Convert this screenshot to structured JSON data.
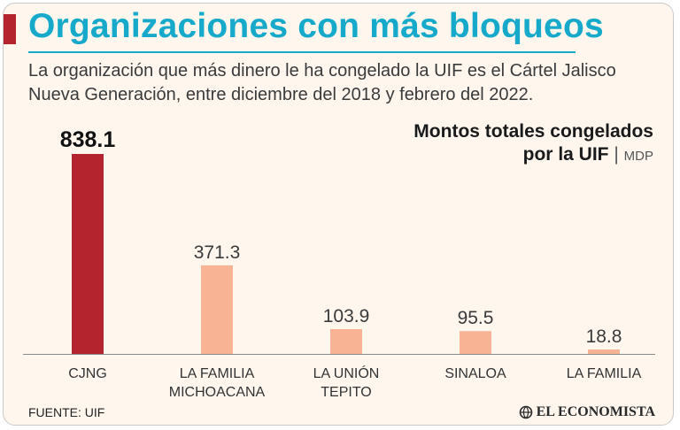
{
  "header": {
    "title": "Organizaciones con más bloqueos",
    "subtitle": "La organización que más dinero le ha congelado la UIF es el Cártel Jalisco Nueva Generación, entre diciembre del 2018 y febrero del 2022."
  },
  "measure": {
    "line1": "Montos totales congelados",
    "line2": "por la UIF",
    "separator": "|",
    "unit": "MDP"
  },
  "footer": {
    "source": "FUENTE: UIF",
    "logo_text": "EL ECONOMISTA"
  },
  "colors": {
    "highlight": "#b3242e",
    "bar": "#f7b394",
    "title": "#16a9c9"
  },
  "chart_data": {
    "type": "bar",
    "title": "Montos totales congelados por la UIF",
    "ylabel": "MDP",
    "xlabel": "",
    "ylim": [
      0,
      838.1
    ],
    "categories": [
      [
        "CJNG"
      ],
      [
        "LA FAMILIA",
        "MICHOACANA"
      ],
      [
        "LA UNIÓN",
        "TEPITO"
      ],
      [
        "SINALOA"
      ],
      [
        "LA FAMILIA"
      ]
    ],
    "values": [
      838.1,
      371.3,
      103.9,
      95.5,
      18.8
    ],
    "value_labels": [
      "838.1",
      "371.3",
      "103.9",
      "95.5",
      "18.8"
    ],
    "highlight_index": 0
  }
}
